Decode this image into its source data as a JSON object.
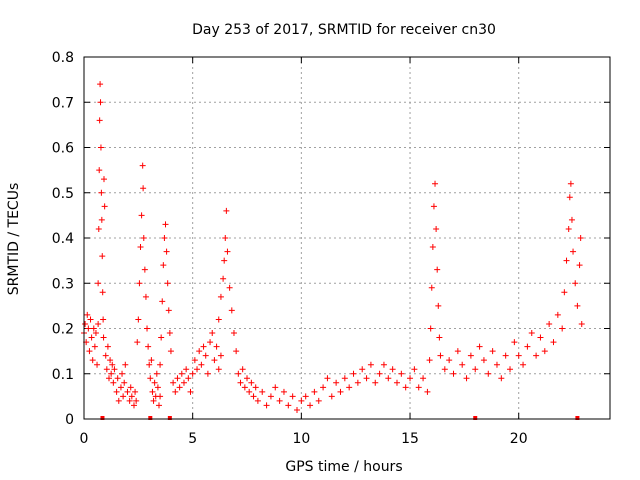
{
  "chart_data": {
    "type": "scatter",
    "title": "Day 253 of 2017, SRMTID for receiver cn30",
    "xlabel": "GPS time / hours",
    "ylabel": "SRMTID / TECUs",
    "xlim": [
      0,
      24.2
    ],
    "ylim": [
      0,
      0.8
    ],
    "x_ticks": [
      0,
      5,
      10,
      15,
      20
    ],
    "y_ticks": [
      0,
      0.1,
      0.2,
      0.3,
      0.4,
      0.5,
      0.6,
      0.7,
      0.8
    ],
    "x_tick_labels": [
      "0",
      "5",
      "10",
      "15",
      "20"
    ],
    "y_tick_labels": [
      "0",
      "0.1",
      "0.2",
      "0.3",
      "0.4",
      "0.5",
      "0.6",
      "0.7",
      "0.8"
    ],
    "grid": true,
    "marker": "+",
    "color": "#ff0000",
    "series": [
      {
        "name": "SRMTID",
        "points": [
          [
            0.0,
            0.19
          ],
          [
            0.05,
            0.21
          ],
          [
            0.1,
            0.17
          ],
          [
            0.15,
            0.23
          ],
          [
            0.2,
            0.2
          ],
          [
            0.25,
            0.15
          ],
          [
            0.3,
            0.22
          ],
          [
            0.35,
            0.18
          ],
          [
            0.4,
            0.13
          ],
          [
            0.45,
            0.2
          ],
          [
            0.5,
            0.16
          ],
          [
            0.55,
            0.19
          ],
          [
            0.6,
            0.12
          ],
          [
            0.65,
            0.21
          ],
          [
            0.65,
            0.3
          ],
          [
            0.68,
            0.42
          ],
          [
            0.7,
            0.55
          ],
          [
            0.72,
            0.66
          ],
          [
            0.74,
            0.74
          ],
          [
            0.76,
            0.7
          ],
          [
            0.78,
            0.6
          ],
          [
            0.8,
            0.5
          ],
          [
            0.82,
            0.44
          ],
          [
            0.84,
            0.36
          ],
          [
            0.86,
            0.28
          ],
          [
            0.88,
            0.22
          ],
          [
            0.9,
            0.18
          ],
          [
            0.92,
            0.53
          ],
          [
            0.95,
            0.47
          ],
          [
            1.0,
            0.14
          ],
          [
            1.05,
            0.11
          ],
          [
            1.1,
            0.16
          ],
          [
            1.15,
            0.09
          ],
          [
            1.2,
            0.13
          ],
          [
            1.25,
            0.1
          ],
          [
            1.3,
            0.12
          ],
          [
            1.35,
            0.08
          ],
          [
            1.4,
            0.11
          ],
          [
            1.5,
            0.06
          ],
          [
            1.55,
            0.09
          ],
          [
            1.6,
            0.04
          ],
          [
            1.7,
            0.07
          ],
          [
            1.75,
            0.1
          ],
          [
            1.8,
            0.05
          ],
          [
            1.85,
            0.08
          ],
          [
            1.9,
            0.12
          ],
          [
            2.0,
            0.06
          ],
          [
            2.1,
            0.04
          ],
          [
            2.15,
            0.07
          ],
          [
            2.2,
            0.05
          ],
          [
            2.3,
            0.03
          ],
          [
            2.35,
            0.06
          ],
          [
            2.4,
            0.04
          ],
          [
            2.45,
            0.17
          ],
          [
            2.5,
            0.22
          ],
          [
            2.55,
            0.3
          ],
          [
            2.6,
            0.38
          ],
          [
            2.65,
            0.45
          ],
          [
            2.7,
            0.56
          ],
          [
            2.72,
            0.51
          ],
          [
            2.75,
            0.4
          ],
          [
            2.8,
            0.33
          ],
          [
            2.85,
            0.27
          ],
          [
            2.9,
            0.2
          ],
          [
            2.95,
            0.16
          ],
          [
            3.0,
            0.12
          ],
          [
            3.05,
            0.09
          ],
          [
            3.1,
            0.13
          ],
          [
            3.15,
            0.06
          ],
          [
            3.2,
            0.04
          ],
          [
            3.25,
            0.08
          ],
          [
            3.3,
            0.05
          ],
          [
            3.35,
            0.1
          ],
          [
            3.4,
            0.07
          ],
          [
            3.45,
            0.03
          ],
          [
            3.5,
            0.05
          ],
          [
            3.5,
            0.12
          ],
          [
            3.55,
            0.18
          ],
          [
            3.6,
            0.26
          ],
          [
            3.65,
            0.34
          ],
          [
            3.7,
            0.4
          ],
          [
            3.75,
            0.43
          ],
          [
            3.8,
            0.37
          ],
          [
            3.85,
            0.3
          ],
          [
            3.9,
            0.24
          ],
          [
            3.95,
            0.19
          ],
          [
            4.0,
            0.15
          ],
          [
            4.1,
            0.08
          ],
          [
            4.2,
            0.06
          ],
          [
            4.3,
            0.09
          ],
          [
            4.4,
            0.07
          ],
          [
            4.5,
            0.1
          ],
          [
            4.6,
            0.08
          ],
          [
            4.7,
            0.11
          ],
          [
            4.8,
            0.09
          ],
          [
            4.9,
            0.06
          ],
          [
            5.0,
            0.1
          ],
          [
            5.1,
            0.13
          ],
          [
            5.2,
            0.11
          ],
          [
            5.3,
            0.15
          ],
          [
            5.4,
            0.12
          ],
          [
            5.5,
            0.16
          ],
          [
            5.6,
            0.14
          ],
          [
            5.7,
            0.1
          ],
          [
            5.8,
            0.17
          ],
          [
            5.9,
            0.19
          ],
          [
            6.0,
            0.13
          ],
          [
            6.1,
            0.16
          ],
          [
            6.2,
            0.11
          ],
          [
            6.3,
            0.14
          ],
          [
            6.2,
            0.22
          ],
          [
            6.3,
            0.27
          ],
          [
            6.4,
            0.31
          ],
          [
            6.45,
            0.35
          ],
          [
            6.5,
            0.4
          ],
          [
            6.55,
            0.46
          ],
          [
            6.6,
            0.37
          ],
          [
            6.7,
            0.29
          ],
          [
            6.8,
            0.24
          ],
          [
            6.9,
            0.19
          ],
          [
            7.0,
            0.15
          ],
          [
            7.1,
            0.1
          ],
          [
            7.2,
            0.08
          ],
          [
            7.3,
            0.11
          ],
          [
            7.4,
            0.07
          ],
          [
            7.5,
            0.09
          ],
          [
            7.6,
            0.06
          ],
          [
            7.7,
            0.08
          ],
          [
            7.8,
            0.05
          ],
          [
            7.9,
            0.07
          ],
          [
            8.0,
            0.04
          ],
          [
            8.2,
            0.06
          ],
          [
            8.4,
            0.03
          ],
          [
            8.6,
            0.05
          ],
          [
            8.8,
            0.07
          ],
          [
            9.0,
            0.04
          ],
          [
            9.2,
            0.06
          ],
          [
            9.4,
            0.03
          ],
          [
            9.6,
            0.05
          ],
          [
            9.8,
            0.02
          ],
          [
            10.0,
            0.04
          ],
          [
            10.2,
            0.05
          ],
          [
            10.4,
            0.03
          ],
          [
            10.6,
            0.06
          ],
          [
            10.8,
            0.04
          ],
          [
            11.0,
            0.07
          ],
          [
            11.2,
            0.09
          ],
          [
            11.4,
            0.05
          ],
          [
            11.6,
            0.08
          ],
          [
            11.8,
            0.06
          ],
          [
            12.0,
            0.09
          ],
          [
            12.2,
            0.07
          ],
          [
            12.4,
            0.1
          ],
          [
            12.6,
            0.08
          ],
          [
            12.8,
            0.11
          ],
          [
            13.0,
            0.09
          ],
          [
            13.2,
            0.12
          ],
          [
            13.4,
            0.08
          ],
          [
            13.6,
            0.1
          ],
          [
            13.8,
            0.12
          ],
          [
            14.0,
            0.09
          ],
          [
            14.2,
            0.11
          ],
          [
            14.4,
            0.08
          ],
          [
            14.6,
            0.1
          ],
          [
            14.8,
            0.07
          ],
          [
            15.0,
            0.09
          ],
          [
            15.2,
            0.11
          ],
          [
            15.4,
            0.07
          ],
          [
            15.6,
            0.09
          ],
          [
            15.8,
            0.06
          ],
          [
            15.9,
            0.13
          ],
          [
            15.95,
            0.2
          ],
          [
            16.0,
            0.29
          ],
          [
            16.05,
            0.38
          ],
          [
            16.1,
            0.47
          ],
          [
            16.15,
            0.52
          ],
          [
            16.2,
            0.42
          ],
          [
            16.25,
            0.33
          ],
          [
            16.3,
            0.25
          ],
          [
            16.35,
            0.18
          ],
          [
            16.4,
            0.14
          ],
          [
            16.6,
            0.11
          ],
          [
            16.8,
            0.13
          ],
          [
            17.0,
            0.1
          ],
          [
            17.2,
            0.15
          ],
          [
            17.4,
            0.12
          ],
          [
            17.6,
            0.09
          ],
          [
            17.8,
            0.14
          ],
          [
            18.0,
            0.11
          ],
          [
            18.2,
            0.16
          ],
          [
            18.4,
            0.13
          ],
          [
            18.6,
            0.1
          ],
          [
            18.8,
            0.15
          ],
          [
            19.0,
            0.12
          ],
          [
            19.2,
            0.09
          ],
          [
            19.4,
            0.14
          ],
          [
            19.6,
            0.11
          ],
          [
            19.8,
            0.17
          ],
          [
            20.0,
            0.14
          ],
          [
            20.2,
            0.12
          ],
          [
            20.4,
            0.16
          ],
          [
            20.6,
            0.19
          ],
          [
            20.8,
            0.14
          ],
          [
            21.0,
            0.18
          ],
          [
            21.2,
            0.15
          ],
          [
            21.4,
            0.21
          ],
          [
            21.6,
            0.17
          ],
          [
            21.8,
            0.23
          ],
          [
            22.0,
            0.2
          ],
          [
            22.1,
            0.28
          ],
          [
            22.2,
            0.35
          ],
          [
            22.3,
            0.42
          ],
          [
            22.35,
            0.49
          ],
          [
            22.4,
            0.52
          ],
          [
            22.45,
            0.44
          ],
          [
            22.5,
            0.37
          ],
          [
            22.6,
            0.3
          ],
          [
            22.7,
            0.25
          ],
          [
            22.8,
            0.34
          ],
          [
            22.85,
            0.4
          ],
          [
            22.9,
            0.21
          ]
        ]
      }
    ],
    "gap_markers_x": [
      0.85,
      3.05,
      3.95,
      18.0,
      22.7
    ]
  }
}
